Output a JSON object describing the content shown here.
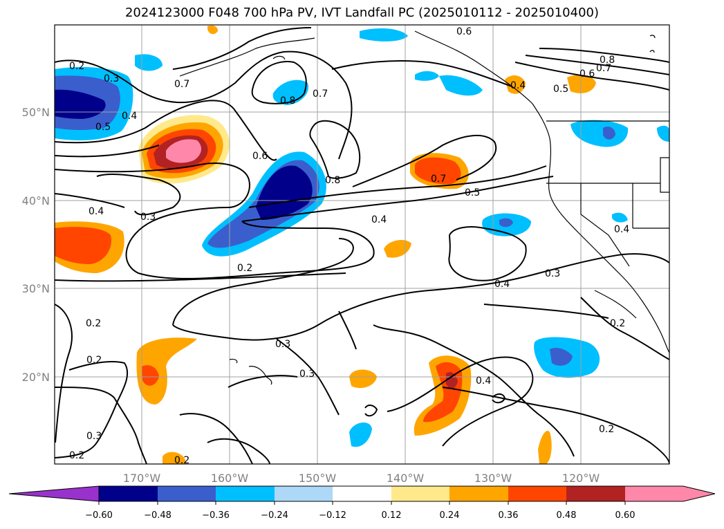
{
  "title": "2024123000 F048 700 hPa PV, IVT Landfall PC (2025010112 - 2025010400)",
  "lon_ticks": [
    "170°W",
    "160°W",
    "150°W",
    "140°W",
    "130°W",
    "120°W"
  ],
  "lat_ticks": [
    "50°N",
    "40°N",
    "30°N",
    "20°N"
  ],
  "colorbar": {
    "tick_labels": [
      "−0.60",
      "−0.48",
      "−0.36",
      "−0.24",
      "−0.12",
      "0.12",
      "0.24",
      "0.36",
      "0.48",
      "0.60"
    ],
    "colors": [
      "#9932cc",
      "#00008b",
      "#3a5fcd",
      "#00bfff",
      "#add8f7",
      "#ffffff",
      "#ffe98a",
      "#ffa500",
      "#ff4500",
      "#b22222",
      "#ff88aa"
    ]
  },
  "contour_labels": [
    "0.2",
    "0.3",
    "0.4",
    "0.5",
    "0.6",
    "0.7",
    "0.8"
  ],
  "colors": {
    "grid": "#a0a0a0",
    "contour": "#000000",
    "tick": "#808080"
  }
}
